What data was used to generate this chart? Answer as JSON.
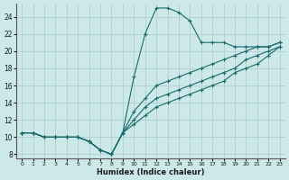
{
  "xlabel": "Humidex (Indice chaleur)",
  "bg_color": "#cce8e8",
  "line_color": "#1a6b6b",
  "xlim": [
    -0.5,
    23.5
  ],
  "ylim": [
    7.5,
    25.5
  ],
  "xticks": [
    0,
    1,
    2,
    3,
    4,
    5,
    6,
    7,
    8,
    9,
    10,
    11,
    12,
    13,
    14,
    15,
    16,
    17,
    18,
    19,
    20,
    21,
    22,
    23
  ],
  "yticks": [
    8,
    10,
    12,
    14,
    16,
    18,
    20,
    22,
    24
  ],
  "series": [
    {
      "x": [
        0,
        1,
        2,
        3,
        4,
        5,
        6,
        7,
        8,
        9,
        10,
        11,
        12,
        13,
        14,
        15,
        16,
        17,
        18,
        19,
        20,
        21,
        22,
        23
      ],
      "y": [
        10.5,
        10.5,
        10,
        10,
        10,
        10,
        9.5,
        8.5,
        8,
        10.5,
        17,
        22,
        25,
        25,
        24.5,
        23.5,
        21,
        21,
        21,
        20.5,
        20.5,
        20.5,
        20.5,
        21
      ]
    },
    {
      "x": [
        0,
        1,
        2,
        3,
        4,
        5,
        6,
        7,
        8,
        9,
        10,
        11,
        12,
        13,
        14,
        15,
        16,
        17,
        18,
        19,
        20,
        21,
        22,
        23
      ],
      "y": [
        10.5,
        10.5,
        10,
        10,
        10,
        10,
        9.5,
        8.5,
        8,
        10.5,
        13,
        14.5,
        16,
        16.5,
        17,
        17.5,
        18,
        18.5,
        19,
        19.5,
        20,
        20.5,
        20.5,
        21
      ]
    },
    {
      "x": [
        0,
        1,
        2,
        3,
        4,
        5,
        6,
        7,
        8,
        9,
        10,
        11,
        12,
        13,
        14,
        15,
        16,
        17,
        18,
        19,
        20,
        21,
        22,
        23
      ],
      "y": [
        10.5,
        10.5,
        10,
        10,
        10,
        10,
        9.5,
        8.5,
        8,
        10.5,
        12,
        13.5,
        14.5,
        15,
        15.5,
        16,
        16.5,
        17,
        17.5,
        18,
        19,
        19.5,
        20,
        20.5
      ]
    },
    {
      "x": [
        0,
        1,
        2,
        3,
        4,
        5,
        6,
        7,
        8,
        9,
        10,
        11,
        12,
        13,
        14,
        15,
        16,
        17,
        18,
        19,
        20,
        21,
        22,
        23
      ],
      "y": [
        10.5,
        10.5,
        10,
        10,
        10,
        10,
        9.5,
        8.5,
        8,
        10.5,
        11.5,
        12.5,
        13.5,
        14,
        14.5,
        15,
        15.5,
        16,
        16.5,
        17.5,
        18,
        18.5,
        19.5,
        20.5
      ]
    }
  ]
}
